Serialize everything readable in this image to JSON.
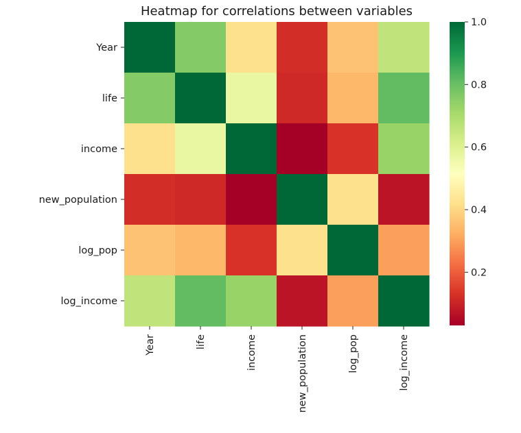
{
  "chart_data": {
    "type": "heatmap",
    "title": "Heatmap for correlations between variables",
    "row_labels": [
      "Year",
      "life",
      "income",
      "new_population",
      "log_pop",
      "log_income"
    ],
    "col_labels": [
      "Year",
      "life",
      "income",
      "new_population",
      "log_pop",
      "log_income"
    ],
    "values": [
      [
        1.0,
        0.76,
        0.42,
        0.12,
        0.36,
        0.66
      ],
      [
        0.76,
        1.0,
        0.57,
        0.11,
        0.34,
        0.81
      ],
      [
        0.42,
        0.57,
        1.0,
        0.03,
        0.13,
        0.73
      ],
      [
        0.12,
        0.11,
        0.03,
        1.0,
        0.42,
        0.07
      ],
      [
        0.36,
        0.34,
        0.13,
        0.42,
        1.0,
        0.3
      ],
      [
        0.66,
        0.81,
        0.73,
        0.07,
        0.3,
        1.0
      ]
    ],
    "colormap": "RdYlGn",
    "vmin": 0.03,
    "vmax": 1.0,
    "colorbar_ticks": [
      "0.2",
      "0.4",
      "0.6",
      "0.8",
      "1.0"
    ],
    "colorbar_tick_values": [
      0.2,
      0.4,
      0.6,
      0.8,
      1.0
    ]
  }
}
